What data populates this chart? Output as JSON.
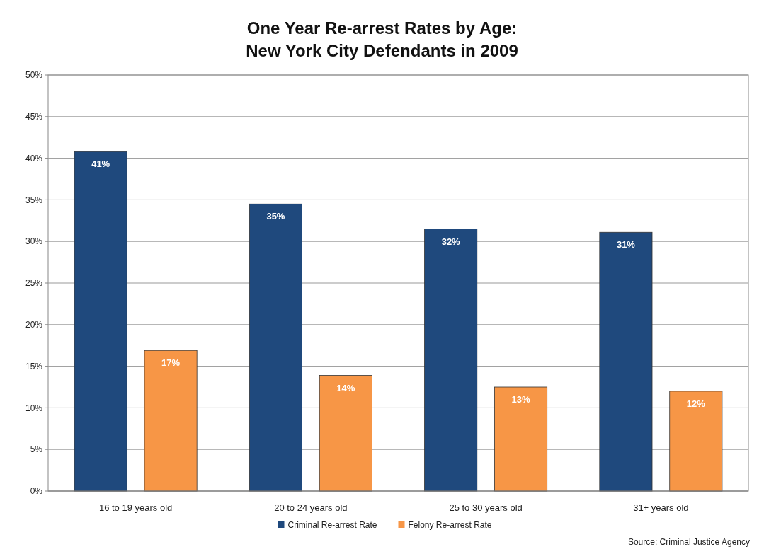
{
  "chart_data": {
    "type": "bar",
    "title": "One Year Re-arrest Rates by Age:\nNew York City Defendants in 2009",
    "categories": [
      "16 to 19 years old",
      "20 to 24 years old",
      "25 to 30 years old",
      "31+ years old"
    ],
    "series": [
      {
        "name": "Criminal Re-arrest Rate",
        "color": "#1f497d",
        "values": [
          40.8,
          34.5,
          31.5,
          31.1
        ],
        "value_labels": [
          "41%",
          "35%",
          "32%",
          "31%"
        ]
      },
      {
        "name": "Felony Re-arrest Rate",
        "color": "#f79646",
        "values": [
          16.9,
          13.9,
          12.5,
          12.0
        ],
        "value_labels": [
          "17%",
          "14%",
          "13%",
          "12%"
        ]
      }
    ],
    "ylim": [
      0,
      50
    ],
    "yticks": [
      {
        "value": 0,
        "label": "0%"
      },
      {
        "value": 5,
        "label": "5%"
      },
      {
        "value": 10,
        "label": "10%"
      },
      {
        "value": 15,
        "label": "15%"
      },
      {
        "value": 20,
        "label": "20%"
      },
      {
        "value": 25,
        "label": "25%"
      },
      {
        "value": 30,
        "label": "30%"
      },
      {
        "value": 35,
        "label": "35%"
      },
      {
        "value": 40,
        "label": "40%"
      },
      {
        "value": 45,
        "label": "45%"
      },
      {
        "value": 50,
        "label": "50%"
      }
    ],
    "grid": "y",
    "legend": "bottom",
    "annotations": [
      "Source: Criminal Justice Agency"
    ]
  }
}
